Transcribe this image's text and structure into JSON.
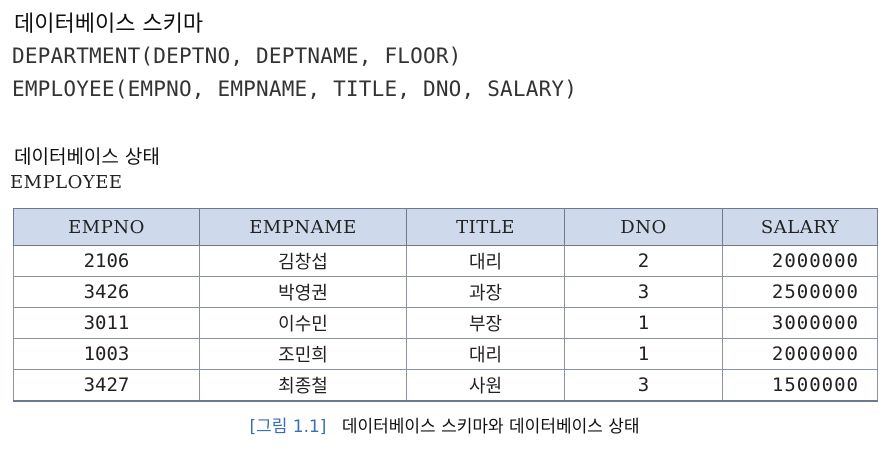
{
  "schema_section": {
    "heading": "데이터베이스 스키마",
    "lines": [
      "DEPARTMENT(DEPTNO, DEPTNAME, FLOOR)",
      "EMPLOYEE(EMPNO, EMPNAME, TITLE, DNO, SALARY)"
    ]
  },
  "state_section": {
    "heading": "데이터베이스 상태",
    "table_name": "EMPLOYEE",
    "columns": [
      "EMPNO",
      "EMPNAME",
      "TITLE",
      "DNO",
      "SALARY"
    ],
    "rows": [
      [
        "2106",
        "김창섭",
        "대리",
        "2",
        "2000000"
      ],
      [
        "3426",
        "박영권",
        "과장",
        "3",
        "2500000"
      ],
      [
        "3011",
        "이수민",
        "부장",
        "1",
        "3000000"
      ],
      [
        "1003",
        "조민희",
        "대리",
        "1",
        "2000000"
      ],
      [
        "3427",
        "최종철",
        "사원",
        "3",
        "1500000"
      ]
    ]
  },
  "caption": {
    "number": "[그림 1.1]",
    "text": "데이터베이스 스키마와 데이터베이스 상태"
  },
  "colors": {
    "header_fill": "#cfd9ec",
    "caption_number": "#3a6fb5"
  }
}
